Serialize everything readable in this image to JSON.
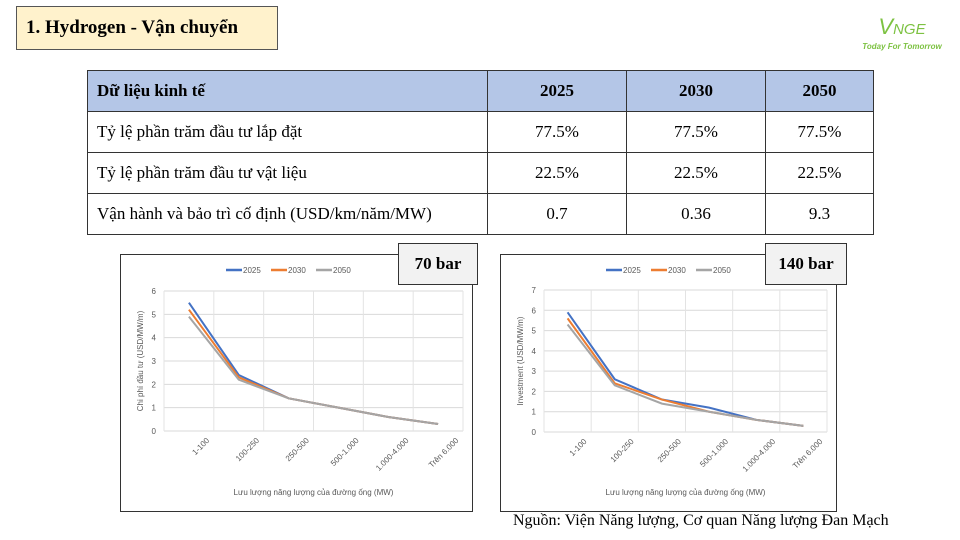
{
  "title": "1. Hydrogen - Vận chuyển",
  "logo": {
    "brand_v": "V",
    "brand_rest": "NGE",
    "tagline": "Today For Tomorrow"
  },
  "table": {
    "headers": [
      "Dữ liệu kinh tế",
      "2025",
      "2030",
      "2050"
    ],
    "rows": [
      [
        "Tỷ lệ phần trăm đầu tư lắp đặt",
        "77.5%",
        "77.5%",
        "77.5%"
      ],
      [
        "Tỷ lệ phần trăm đầu tư vật liệu",
        "22.5%",
        "22.5%",
        "22.5%"
      ],
      [
        "Vận hành và bảo trì cố định (USD/km/năm/MW)",
        "0.7",
        "0.36",
        "9.3"
      ]
    ]
  },
  "source": "Nguồn: Viện Năng lượng, Cơ quan Năng lượng Đan Mạch",
  "chart_data": [
    {
      "type": "line",
      "label": "70 bar",
      "categories": [
        "1-100",
        "100-250",
        "250-500",
        "500-1.000",
        "1.000-4.000",
        "Trên 6.000"
      ],
      "xlabel": "Lưu lượng năng lượng của đường ống (MW)",
      "ylabel": "Chi phí đầu tư (USD/MW/m)",
      "ylim": [
        0,
        6
      ],
      "yticks": [
        0,
        1,
        2,
        3,
        4,
        5,
        6
      ],
      "grid": true,
      "legend": "top",
      "series": [
        {
          "name": "2025",
          "color": "#4472c4",
          "values": [
            5.5,
            2.4,
            1.4,
            1.0,
            0.6,
            0.3
          ]
        },
        {
          "name": "2030",
          "color": "#ed7d31",
          "values": [
            5.2,
            2.3,
            1.4,
            1.0,
            0.6,
            0.3
          ]
        },
        {
          "name": "2050",
          "color": "#a5a5a5",
          "values": [
            4.9,
            2.2,
            1.4,
            1.0,
            0.6,
            0.3
          ]
        }
      ]
    },
    {
      "type": "line",
      "label": "140 bar",
      "categories": [
        "1-100",
        "100-250",
        "250-500",
        "500-1.000",
        "1.000-4.000",
        "Trên 6.000"
      ],
      "xlabel": "Lưu lượng năng lượng của đường ống (MW)",
      "ylabel": "Investment (USD/MW/m)",
      "ylim": [
        0,
        7
      ],
      "yticks": [
        0,
        1,
        2,
        3,
        4,
        5,
        6,
        7
      ],
      "grid": true,
      "legend": "top",
      "series": [
        {
          "name": "2025",
          "color": "#4472c4",
          "values": [
            5.9,
            2.6,
            1.6,
            1.2,
            0.6,
            0.3
          ]
        },
        {
          "name": "2030",
          "color": "#ed7d31",
          "values": [
            5.6,
            2.4,
            1.6,
            1.0,
            0.6,
            0.3
          ]
        },
        {
          "name": "2050",
          "color": "#a5a5a5",
          "values": [
            5.3,
            2.3,
            1.4,
            1.0,
            0.6,
            0.3
          ]
        }
      ]
    }
  ]
}
